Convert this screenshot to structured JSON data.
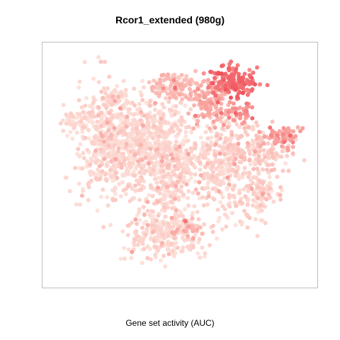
{
  "chart_data": {
    "type": "scatter",
    "title": "Rcor1_extended (980g)",
    "xlabel": "Gene set activity (AUC)",
    "ylabel": "",
    "axes_visible": false,
    "grid": false,
    "legend": "none",
    "x_range": [
      0,
      100
    ],
    "y_range": [
      0,
      100
    ],
    "color_scale": {
      "low": "#fde3dc",
      "mid": "#f9a5a0",
      "high": "#f0505a"
    },
    "point_count": 2600,
    "clusters": [
      {
        "name": "",
        "center": [
          11,
          69
        ],
        "spread": [
          3.5,
          2.2
        ],
        "count": 50,
        "activity": 0.06
      },
      {
        "name": "",
        "center": [
          24,
          58
        ],
        "spread": [
          7,
          12
        ],
        "count": 520,
        "activity": 0.07
      },
      {
        "name": "",
        "center": [
          25,
          79
        ],
        "spread": [
          3.5,
          2.8
        ],
        "count": 55,
        "activity": 0.07
      },
      {
        "name": "",
        "center": [
          46,
          50
        ],
        "spread": [
          6,
          14
        ],
        "count": 460,
        "activity": 0.08
      },
      {
        "name": "",
        "center": [
          45,
          20
        ],
        "spread": [
          8,
          6
        ],
        "count": 260,
        "activity": 0.07
      },
      {
        "name": "",
        "center": [
          53,
          22
        ],
        "spread": [
          2.5,
          2.5
        ],
        "count": 25,
        "activity": 0.35
      },
      {
        "name": "",
        "center": [
          65,
          50
        ],
        "spread": [
          6,
          10
        ],
        "count": 300,
        "activity": 0.09
      },
      {
        "name": "",
        "center": [
          80,
          56
        ],
        "spread": [
          7,
          5
        ],
        "count": 150,
        "activity": 0.18
      },
      {
        "name": "",
        "center": [
          80,
          38
        ],
        "spread": [
          4,
          5
        ],
        "count": 110,
        "activity": 0.12
      },
      {
        "name": "",
        "center": [
          88,
          62
        ],
        "spread": [
          3.5,
          2.2
        ],
        "count": 60,
        "activity": 0.5
      },
      {
        "name": "",
        "center": [
          70,
          86
        ],
        "spread": [
          4.5,
          3.5
        ],
        "count": 150,
        "activity": 0.8
      },
      {
        "name": "",
        "center": [
          61,
          77
        ],
        "spread": [
          3.5,
          5
        ],
        "count": 130,
        "activity": 0.42
      },
      {
        "name": "",
        "center": [
          48,
          83
        ],
        "spread": [
          4.5,
          3.5
        ],
        "count": 110,
        "activity": 0.3
      },
      {
        "name": "",
        "center": [
          73,
          72
        ],
        "spread": [
          3,
          3
        ],
        "count": 40,
        "activity": 0.55
      },
      {
        "name": "",
        "center": [
          35,
          62
        ],
        "spread": [
          5,
          8
        ],
        "count": 180,
        "activity": 0.06
      }
    ]
  }
}
